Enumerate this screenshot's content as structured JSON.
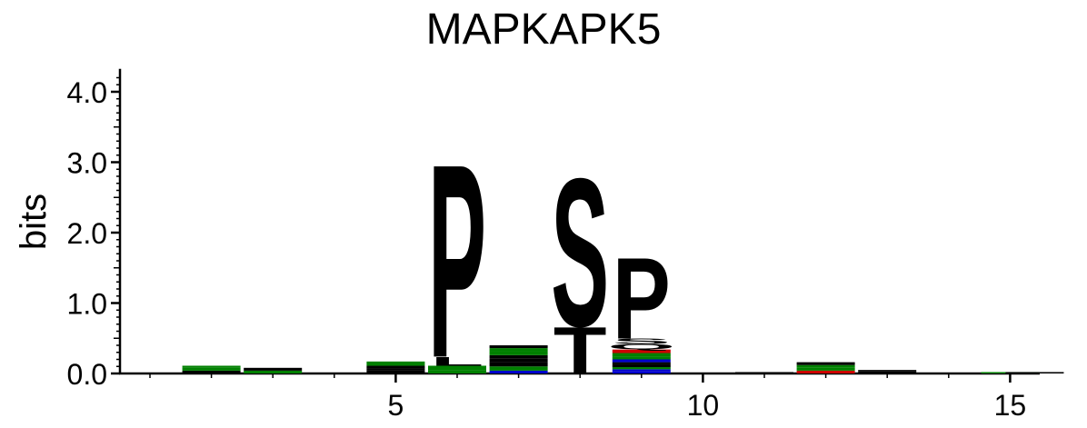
{
  "chart_data": {
    "type": "sequence-logo",
    "title": "MAPKAPK5",
    "ylabel": "bits",
    "xlabel": "",
    "ylim": [
      0,
      4.3
    ],
    "xlim": [
      0.5,
      15.5
    ],
    "yticks": [
      "0.0",
      "1.0",
      "2.0",
      "3.0",
      "4.0"
    ],
    "xticks": [
      "5",
      "10",
      "15"
    ],
    "grid": false,
    "colors": {
      "P": "#000000",
      "L": "#000000",
      "A": "#000000",
      "G": "#008000",
      "S": "#008000",
      "T": "#008000",
      "R": "#0000cc",
      "K": "#0000cc",
      "D": "#cc0000",
      "E": "#cc0000",
      "Q": "#800080",
      "N": "#800080"
    },
    "positions": [
      {
        "pos": 2,
        "stack": [
          {
            "letter": "L",
            "height": 0.04
          },
          {
            "letter": "S",
            "height": 0.04
          },
          {
            "letter": "G",
            "height": 0.03
          }
        ]
      },
      {
        "pos": 3,
        "stack": [
          {
            "letter": "S",
            "height": 0.04
          },
          {
            "letter": "P",
            "height": 0.04
          }
        ]
      },
      {
        "pos": 5,
        "stack": [
          {
            "letter": "L",
            "height": 0.04
          },
          {
            "letter": "A",
            "height": 0.03
          },
          {
            "letter": "P",
            "height": 0.04
          },
          {
            "letter": "S",
            "height": 0.06
          }
        ]
      },
      {
        "pos": 6,
        "stack": [
          {
            "letter": "G",
            "height": 0.04
          },
          {
            "letter": "S",
            "height": 0.07
          },
          {
            "letter": "L",
            "height": 0.13
          },
          {
            "letter": "P",
            "height": 2.81
          }
        ]
      },
      {
        "pos": 7,
        "stack": [
          {
            "letter": "R",
            "height": 0.04
          },
          {
            "letter": "S",
            "height": 0.06
          },
          {
            "letter": "L",
            "height": 0.06
          },
          {
            "letter": "A",
            "height": 0.05
          },
          {
            "letter": "P",
            "height": 0.05
          },
          {
            "letter": "G",
            "height": 0.05
          },
          {
            "letter": "S",
            "height": 0.05
          },
          {
            "letter": "P",
            "height": 0.04
          }
        ]
      },
      {
        "pos": 8,
        "stack": [
          {
            "letter": "T",
            "height": 0.68
          },
          {
            "letter": "S",
            "height": 2.15
          }
        ]
      },
      {
        "pos": 9,
        "stack": [
          {
            "letter": "R",
            "height": 0.03
          },
          {
            "letter": "K",
            "height": 0.03
          },
          {
            "letter": "G",
            "height": 0.03
          },
          {
            "letter": "L",
            "height": 0.04
          },
          {
            "letter": "P",
            "height": 0.03
          },
          {
            "letter": "R",
            "height": 0.04
          },
          {
            "letter": "G",
            "height": 0.04
          },
          {
            "letter": "S",
            "height": 0.05
          },
          {
            "letter": "E",
            "height": 0.05
          },
          {
            "letter": "Q",
            "height": 0.08
          },
          {
            "letter": "S",
            "height": 0.08
          },
          {
            "letter": "P",
            "height": 1.18
          }
        ]
      },
      {
        "pos": 11,
        "stack": [
          {
            "letter": "L",
            "height": 0.02
          }
        ]
      },
      {
        "pos": 12,
        "stack": [
          {
            "letter": "D",
            "height": 0.04
          },
          {
            "letter": "G",
            "height": 0.04
          },
          {
            "letter": "S",
            "height": 0.04
          },
          {
            "letter": "P",
            "height": 0.04
          }
        ]
      },
      {
        "pos": 13,
        "stack": [
          {
            "letter": "L",
            "height": 0.03
          },
          {
            "letter": "P",
            "height": 0.02
          }
        ]
      },
      {
        "pos": 15,
        "stack": [
          {
            "letter": "G",
            "height": 0.02
          }
        ]
      },
      {
        "pos": 15.4,
        "stack": [
          {
            "letter": "L",
            "height": 0.02
          }
        ]
      }
    ]
  }
}
